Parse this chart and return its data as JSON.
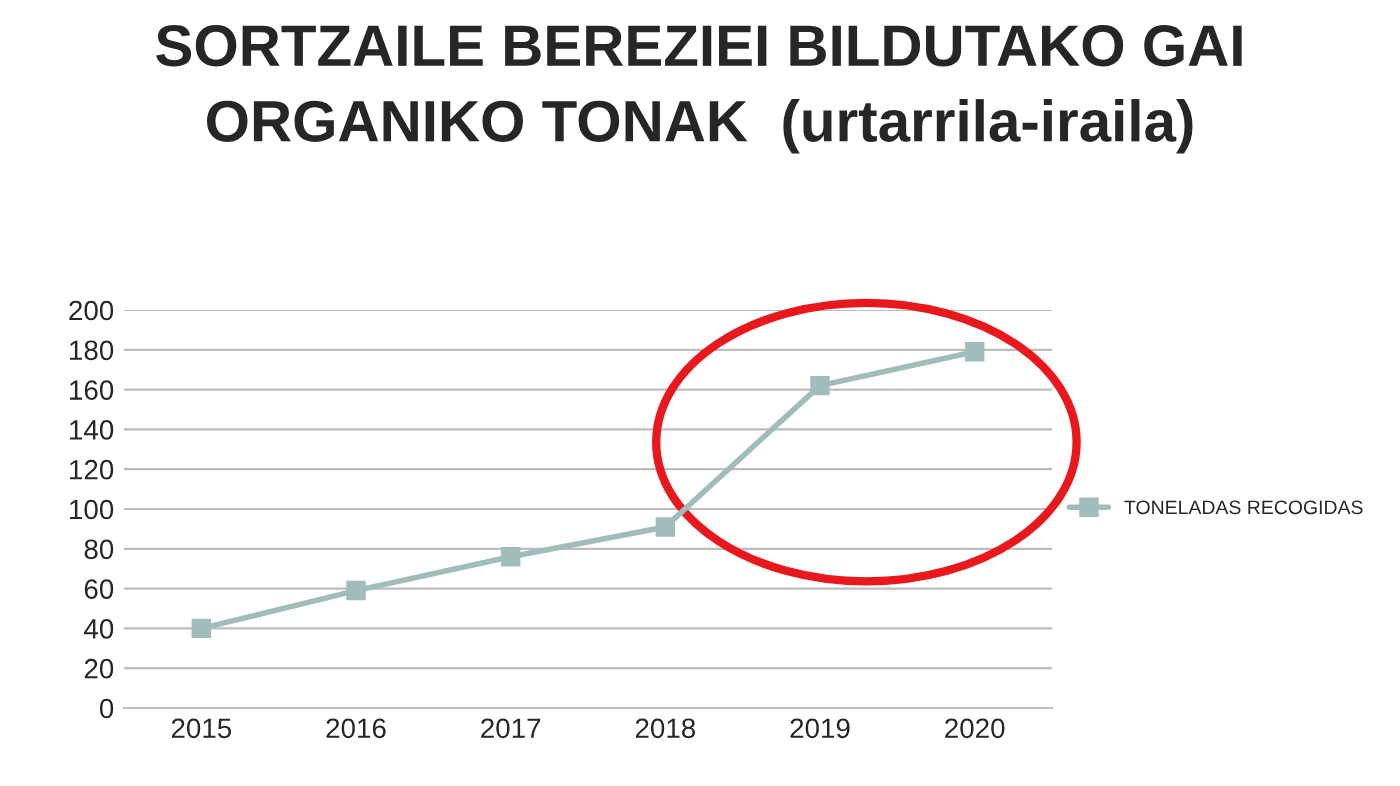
{
  "chart_data": {
    "type": "line",
    "title": "SORTZAILE BEREZIEI BILDUTAKO GAI\nORGANIKO TONAK  (urtarrila-iraila)",
    "categories": [
      "2015",
      "2016",
      "2017",
      "2018",
      "2019",
      "2020"
    ],
    "series": [
      {
        "name": "TONELADAS RECOGIDAS",
        "color": "#a0bdbc",
        "values": [
          40,
          59,
          76,
          91,
          162,
          179
        ]
      }
    ],
    "ylim": [
      0,
      200
    ],
    "yticks": [
      0,
      20,
      40,
      60,
      80,
      100,
      120,
      140,
      160,
      180,
      200
    ],
    "grid": "y",
    "legend": "right",
    "marker": "square",
    "line_style": "solid"
  }
}
